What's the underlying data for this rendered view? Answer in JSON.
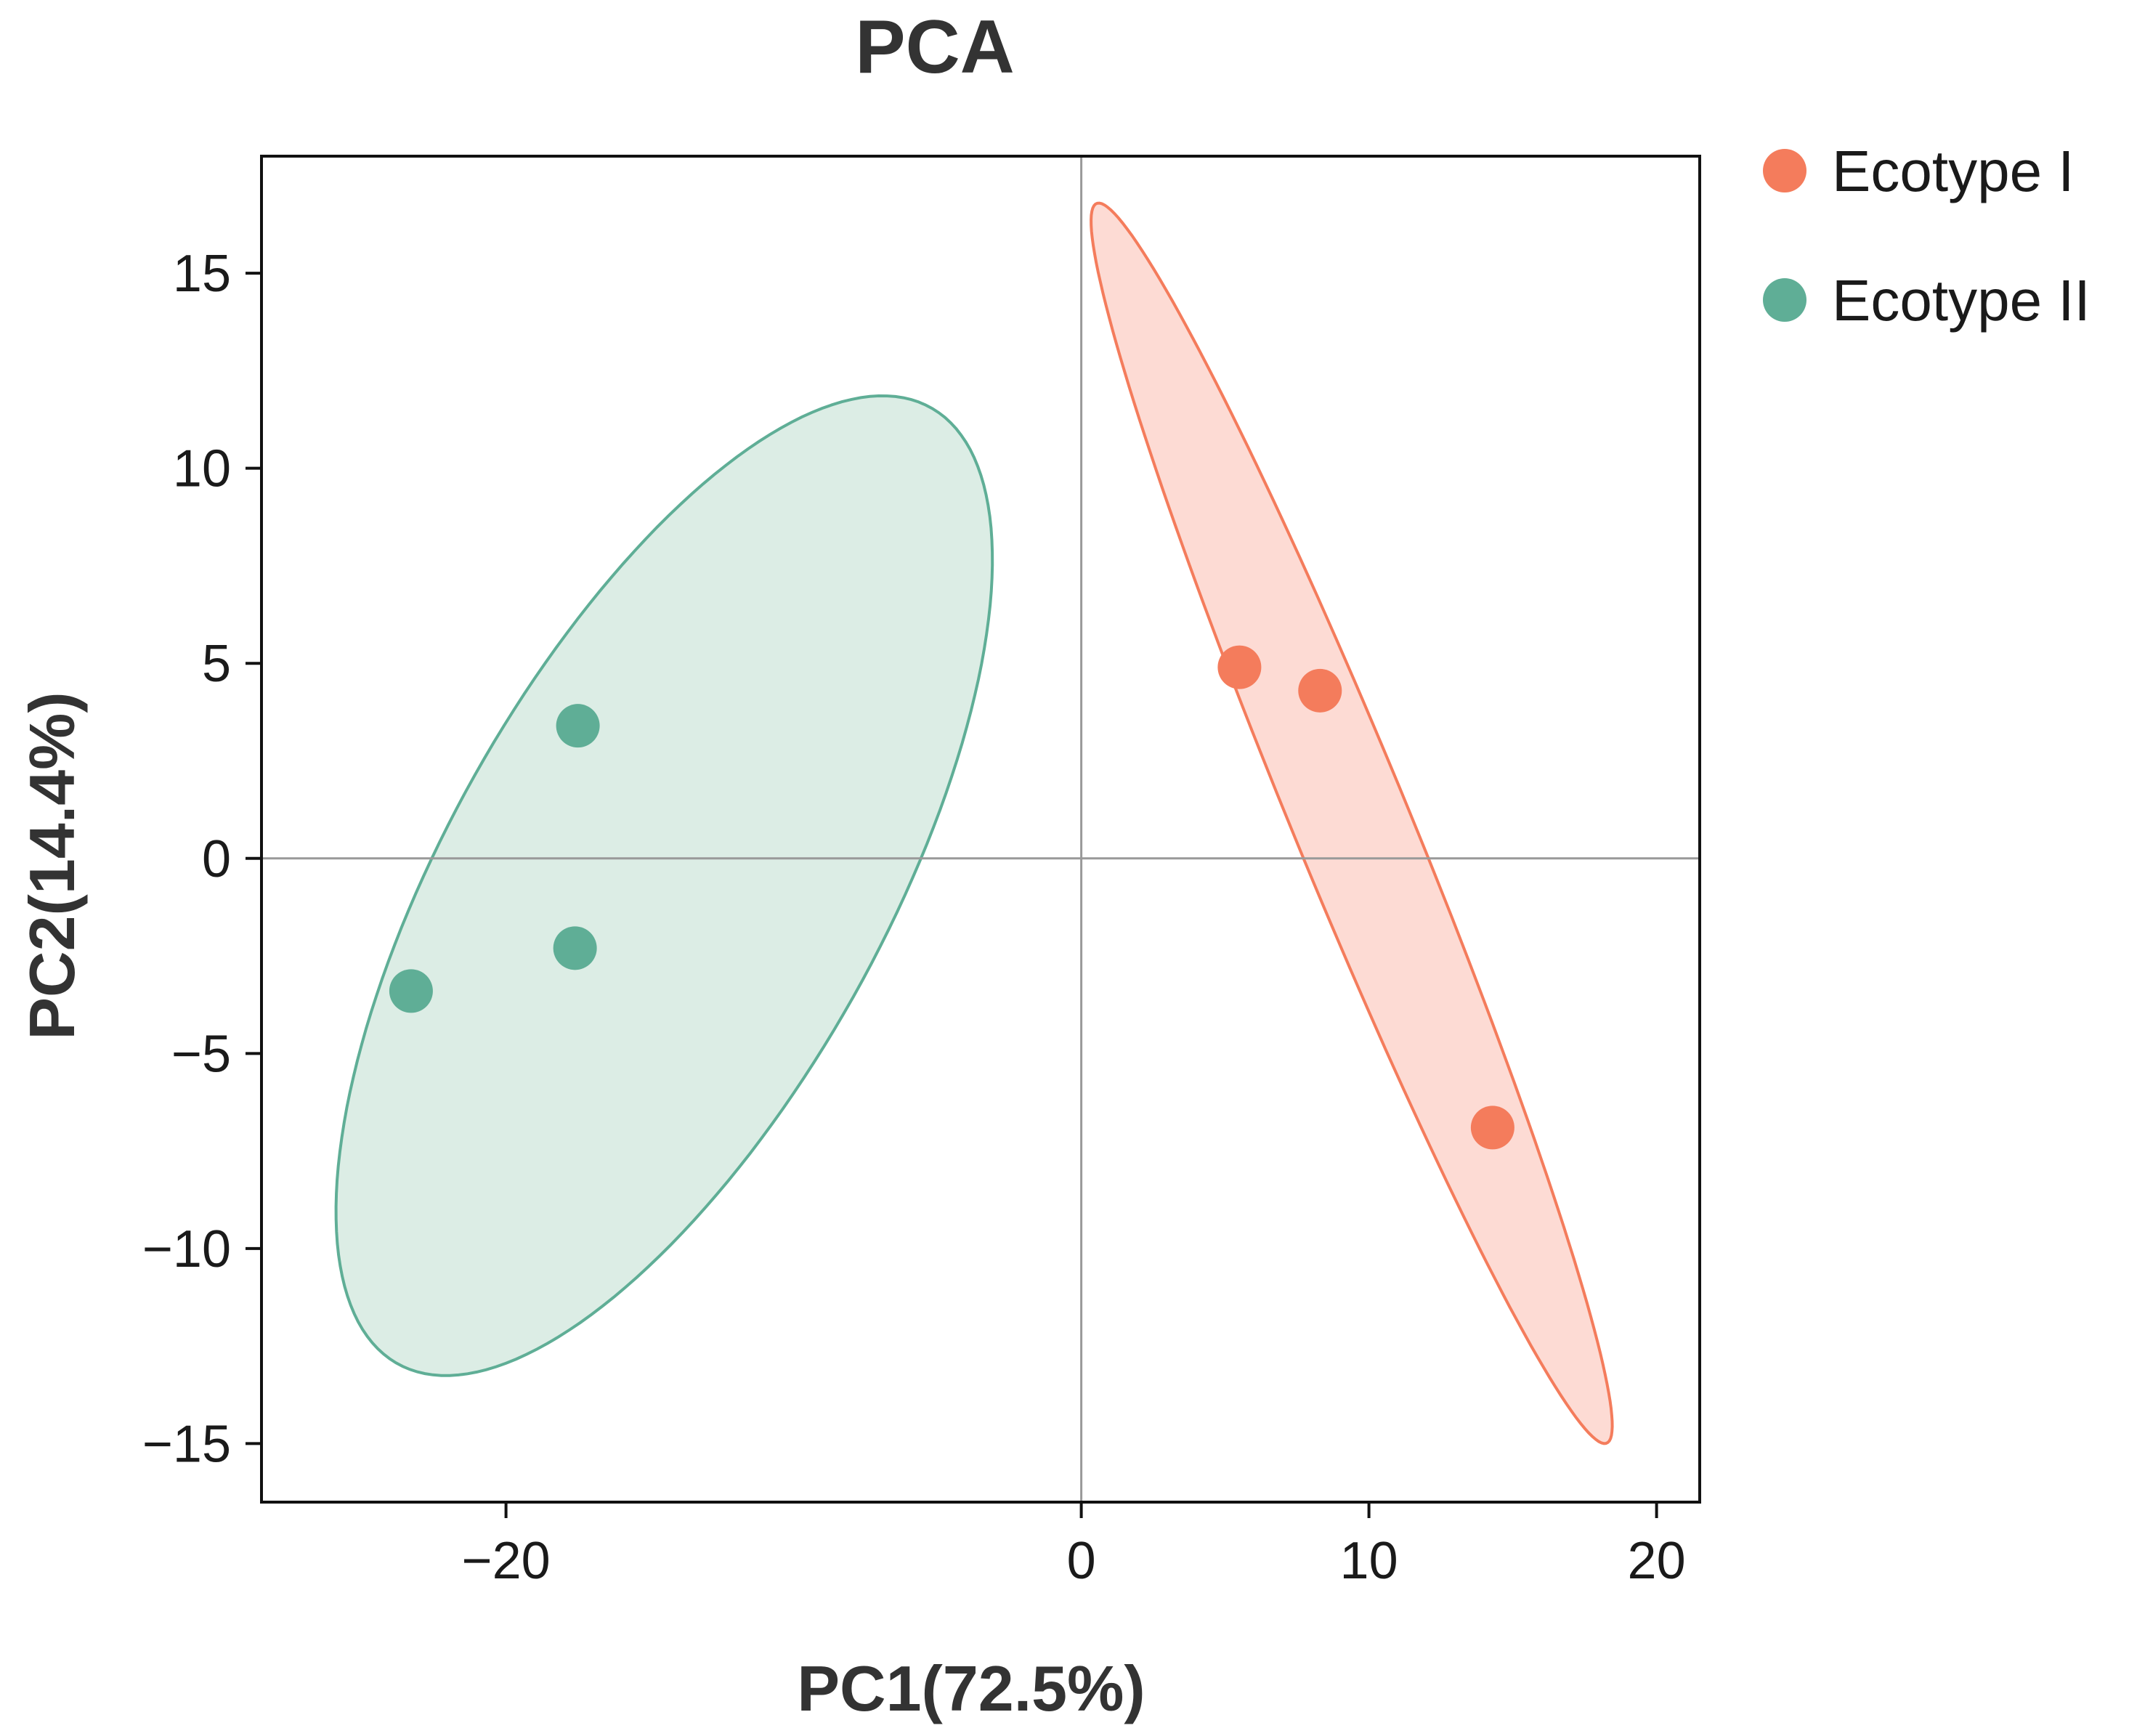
{
  "chart_data": {
    "type": "scatter",
    "title": "PCA",
    "xlabel": "PC1(72.5%)",
    "ylabel": "PC2(14.4%)",
    "xlim": [
      -28.5,
      21.5
    ],
    "ylim": [
      -16.5,
      18.0
    ],
    "xticks": [
      -20,
      0,
      10,
      20
    ],
    "xtick_labels": [
      "−20",
      "0",
      "10",
      "20"
    ],
    "yticks": [
      15,
      10,
      5,
      0,
      -5,
      -10,
      -15
    ],
    "ytick_labels": [
      "15",
      "10",
      "5",
      "0",
      "−5",
      "−10",
      "−15"
    ],
    "reference_lines": {
      "x": 0,
      "y": 0
    },
    "legend_position": "top-right-outside",
    "series": [
      {
        "name": "Ecotype I",
        "color": "#F47C5C",
        "fill": "#FDD5CC",
        "points": [
          {
            "x": 5.5,
            "y": 4.9
          },
          {
            "x": 8.3,
            "y": 4.3
          },
          {
            "x": 14.3,
            "y": -6.9
          }
        ],
        "ellipse": {
          "center": [
            9.4,
            0.9
          ],
          "rx": 18.2,
          "ry": 1.9,
          "angle_deg": -60.7
        }
      },
      {
        "name": "Ecotype II",
        "color": "#5FAE96",
        "fill": "#D6EAE0",
        "points": [
          {
            "x": -17.5,
            "y": 3.4
          },
          {
            "x": -17.6,
            "y": -2.3
          },
          {
            "x": -23.3,
            "y": -3.4
          }
        ],
        "ellipse": {
          "center": [
            -14.5,
            -0.7
          ],
          "rx": 15.5,
          "ry": 6.9,
          "angle_deg": 49.1
        }
      }
    ]
  }
}
